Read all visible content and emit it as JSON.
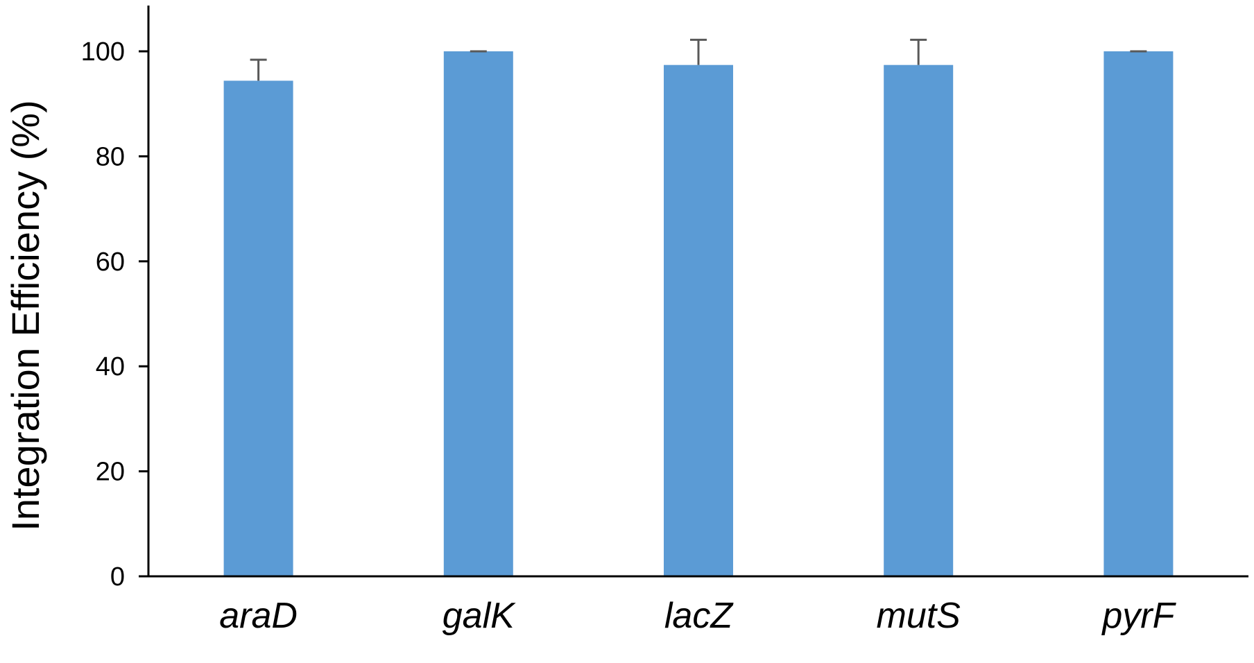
{
  "chart_data": {
    "type": "bar",
    "title": "",
    "xlabel": "",
    "ylabel": "Integration Efficiency (%)",
    "categories": [
      "araD",
      "galK",
      "lacZ",
      "mutS",
      "pyrF"
    ],
    "values": [
      94.4,
      100,
      97.4,
      97.4,
      100
    ],
    "error_upper": [
      4.0,
      0,
      4.8,
      4.8,
      0
    ],
    "ylim": [
      0,
      100
    ],
    "yticks": [
      0,
      20,
      40,
      60,
      80,
      100
    ],
    "grid": false,
    "legend": "none",
    "colors": {
      "bar": "#5B9BD5",
      "axis": "#000000",
      "error_bar": "#595959"
    }
  }
}
